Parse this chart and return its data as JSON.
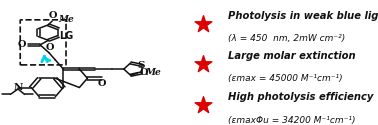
{
  "background_color": "#ffffff",
  "star_color": "#dd0000",
  "text_color": "#111111",
  "cyan_color": "#00d4e8",
  "bullet_points": [
    {
      "line1": "Photolysis in weak blue light",
      "line2": "(λ = 450  nm, 2mW cm⁻²)"
    },
    {
      "line1": "Large molar extinction",
      "line2": "(εmax = 45000 M⁻¹cm⁻¹)"
    },
    {
      "line1": "High photolysis efficiency",
      "line2": "(εmaxΦu = 34200 M⁻¹cm⁻¹)"
    }
  ]
}
